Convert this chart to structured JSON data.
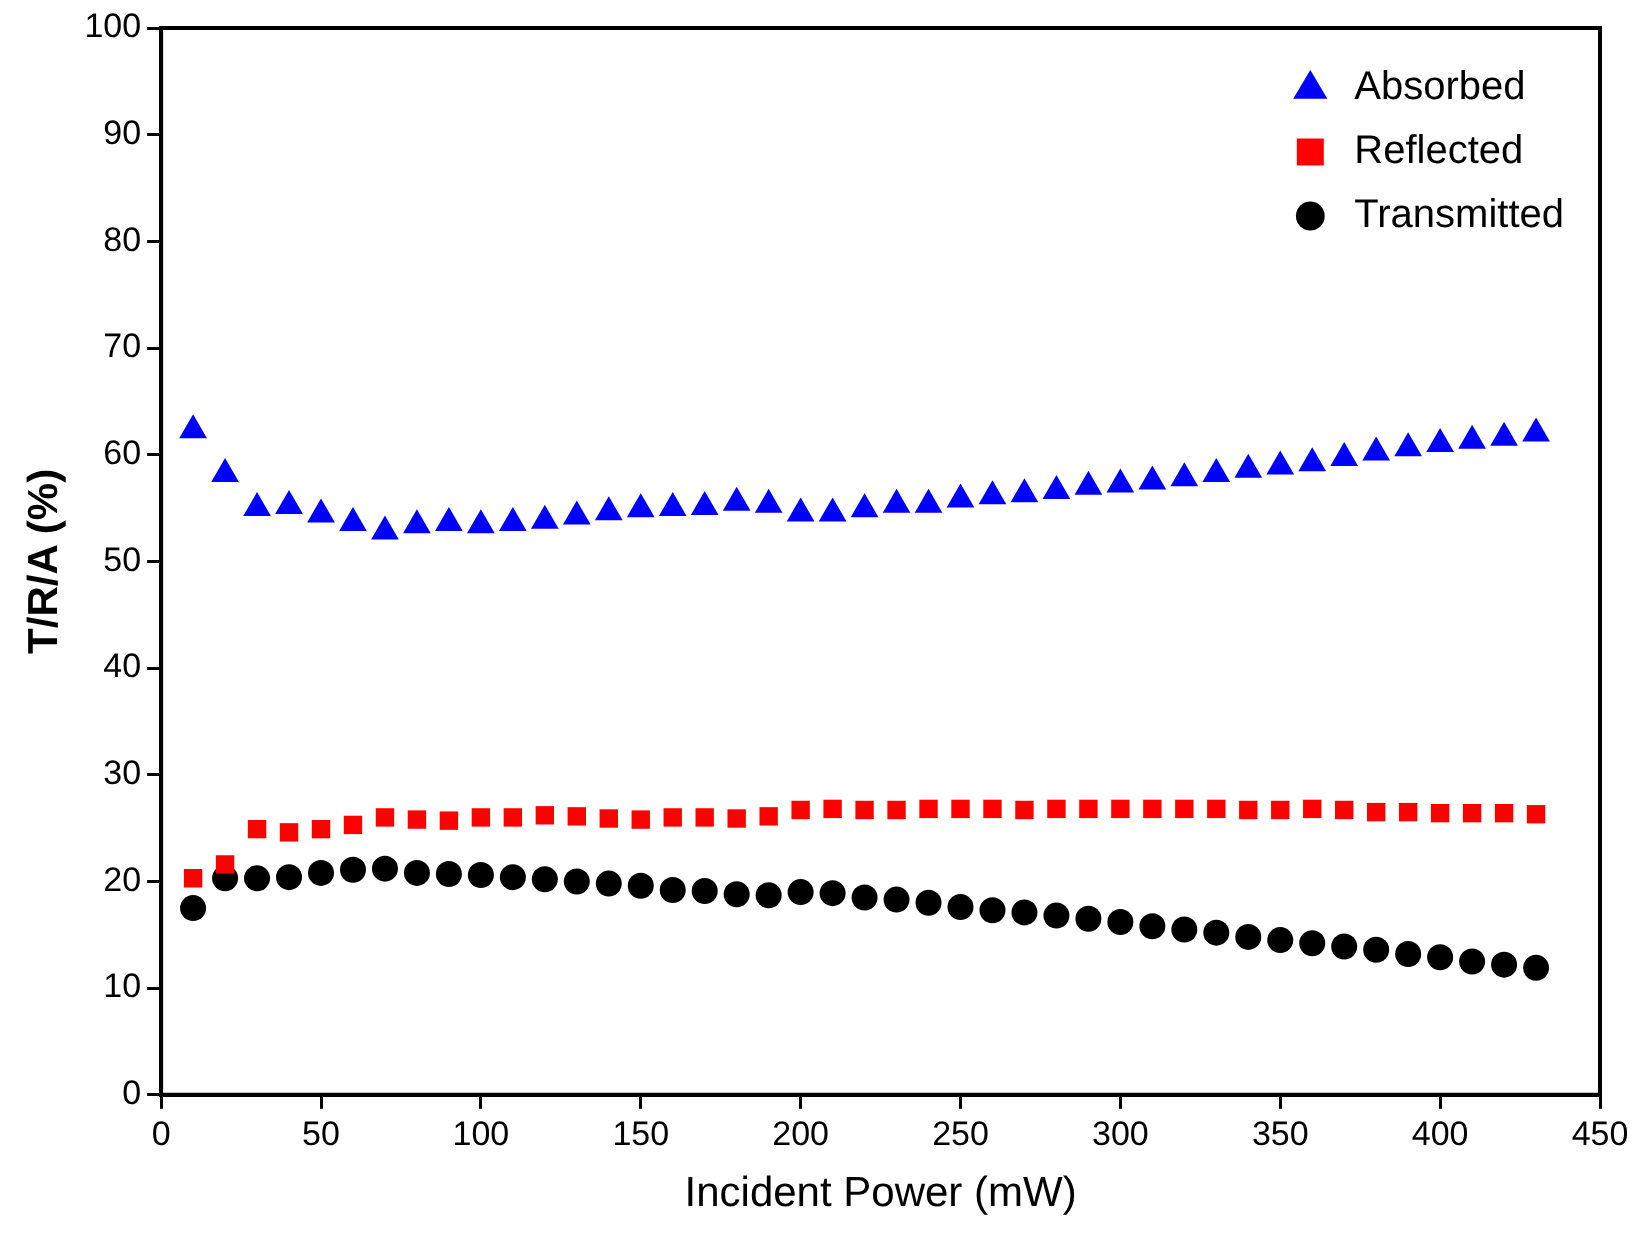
{
  "chart_data": {
    "type": "scatter",
    "xlabel": "Incident Power (mW)",
    "ylabel": "T/R/A (%)",
    "x": [
      10,
      20,
      30,
      40,
      50,
      60,
      70,
      80,
      90,
      100,
      110,
      120,
      130,
      140,
      150,
      160,
      170,
      180,
      190,
      200,
      210,
      220,
      230,
      240,
      250,
      260,
      270,
      280,
      290,
      300,
      310,
      320,
      330,
      340,
      350,
      360,
      370,
      380,
      390,
      400,
      410,
      420,
      430
    ],
    "series": [
      {
        "name": "Absorbed",
        "color": "#0000ff",
        "marker": "triangle",
        "values": [
          62.3,
          58.2,
          55,
          55.2,
          54.4,
          53.6,
          52.8,
          53.4,
          53.6,
          53.4,
          53.6,
          53.8,
          54.2,
          54.6,
          54.9,
          55,
          55.1,
          55.5,
          55.3,
          54.5,
          54.5,
          54.9,
          55.3,
          55.3,
          55.8,
          56.1,
          56.3,
          56.6,
          57,
          57.2,
          57.5,
          57.8,
          58.2,
          58.6,
          58.9,
          59.2,
          59.7,
          60.2,
          60.6,
          61,
          61.3,
          61.6,
          62
        ]
      },
      {
        "name": "Reflected",
        "color": "#ff0000",
        "marker": "square",
        "values": [
          20.3,
          21.6,
          24.9,
          24.6,
          24.9,
          25.3,
          26,
          25.8,
          25.7,
          26,
          26,
          26.2,
          26.1,
          25.9,
          25.8,
          26,
          26,
          25.9,
          26.1,
          26.7,
          26.8,
          26.7,
          26.7,
          26.8,
          26.8,
          26.8,
          26.7,
          26.8,
          26.8,
          26.8,
          26.8,
          26.8,
          26.8,
          26.7,
          26.7,
          26.8,
          26.7,
          26.5,
          26.5,
          26.4,
          26.4,
          26.4,
          26.3
        ]
      },
      {
        "name": "Transmitted",
        "color": "#000000",
        "marker": "circle",
        "values": [
          17.5,
          20.3,
          20.3,
          20.4,
          20.8,
          21.1,
          21.2,
          20.8,
          20.7,
          20.6,
          20.4,
          20.2,
          20,
          19.8,
          19.6,
          19.2,
          19.1,
          18.8,
          18.7,
          19,
          18.9,
          18.5,
          18.3,
          18,
          17.6,
          17.3,
          17.1,
          16.8,
          16.5,
          16.2,
          15.8,
          15.5,
          15.2,
          14.8,
          14.5,
          14.2,
          13.9,
          13.6,
          13.2,
          12.9,
          12.5,
          12.2,
          11.9
        ]
      }
    ],
    "xlim": [
      0,
      450
    ],
    "xticks": [
      0,
      50,
      100,
      150,
      200,
      250,
      300,
      350,
      400,
      450
    ],
    "ylim": [
      0,
      100
    ],
    "yticks": [
      0,
      10,
      20,
      30,
      40,
      50,
      60,
      70,
      80,
      90,
      100
    ],
    "grid": false,
    "legend": "top right"
  }
}
